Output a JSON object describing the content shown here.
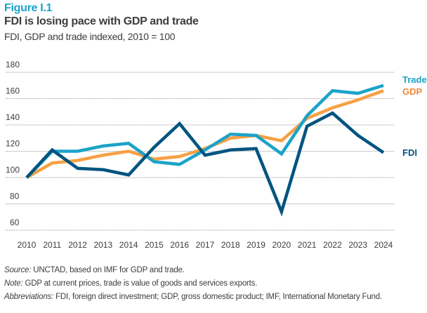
{
  "header": {
    "figure_label": "Figure I.1",
    "title": "FDI is losing pace with GDP and trade",
    "subtitle": "FDI, GDP and trade indexed, 2010 = 100"
  },
  "footnotes": {
    "source_label": "Source:",
    "source_text": " UNCTAD, based on IMF for GDP and trade.",
    "note_label": "Note:",
    "note_text": " GDP at current prices, trade is value of goods and services exports.",
    "abbrev_label": "Abbreviations:",
    "abbrev_text": " FDI, foreign direct investment; GDP, gross domestic product; IMF, International Monetary Fund."
  },
  "chart_data": {
    "type": "line",
    "title": "FDI is losing pace with GDP and trade",
    "subtitle": "FDI, GDP and trade indexed, 2010 = 100",
    "xlabel": "",
    "ylabel": "",
    "x": [
      "2010",
      "2011",
      "2012",
      "2013",
      "2014",
      "2015",
      "2016",
      "2017",
      "2018",
      "2019",
      "2020",
      "2021",
      "2022",
      "2023",
      "2024"
    ],
    "yticks": [
      60,
      80,
      100,
      120,
      140,
      160,
      180
    ],
    "ylim": [
      60,
      180
    ],
    "grid": true,
    "legend": "right-end labels",
    "series": [
      {
        "name": "Trade",
        "color": "#1BA3C9",
        "values": [
          100,
          120,
          120,
          124,
          126,
          112,
          110,
          121,
          133,
          132,
          118,
          147,
          166,
          164,
          170
        ]
      },
      {
        "name": "GDP",
        "color": "#F7A045",
        "label_color": "#EE8A3C",
        "values": [
          100,
          111,
          113,
          117,
          120,
          114,
          116,
          122,
          130,
          132,
          128,
          145,
          153,
          159,
          166
        ]
      },
      {
        "name": "FDI",
        "color": "#005480",
        "values": [
          100,
          121,
          107,
          106,
          102,
          123,
          141,
          117,
          121,
          122,
          74,
          139,
          149,
          132,
          119
        ]
      }
    ]
  }
}
